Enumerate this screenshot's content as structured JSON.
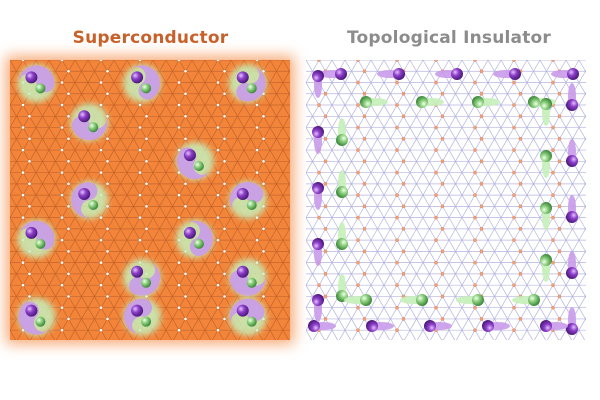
{
  "panels": [
    {
      "title": "Superconductor",
      "title_color": "#c8602a",
      "background_color": "#f2853a",
      "lattice_color": "#b85a26",
      "pairs": [
        [
          1,
          1
        ],
        [
          3,
          1
        ],
        [
          5,
          1
        ],
        [
          2,
          2
        ],
        [
          4,
          3
        ],
        [
          2,
          4
        ],
        [
          5,
          4
        ],
        [
          1,
          5
        ],
        [
          4,
          5
        ],
        [
          3,
          6
        ],
        [
          5,
          6
        ],
        [
          1,
          7
        ],
        [
          3,
          7
        ],
        [
          5,
          7
        ]
      ]
    },
    {
      "title": "Topological Insulator",
      "title_color": "#8c8c8c",
      "background_color": "#ffffff",
      "lattice_color": "#9b9bd6",
      "edge_state": "electrons-at-edges"
    }
  ],
  "colors": {
    "purple": "#8e3fc9",
    "purple_glow": "#c99bea",
    "green": "#7fc97a",
    "green_glow": "#c6efb9"
  }
}
